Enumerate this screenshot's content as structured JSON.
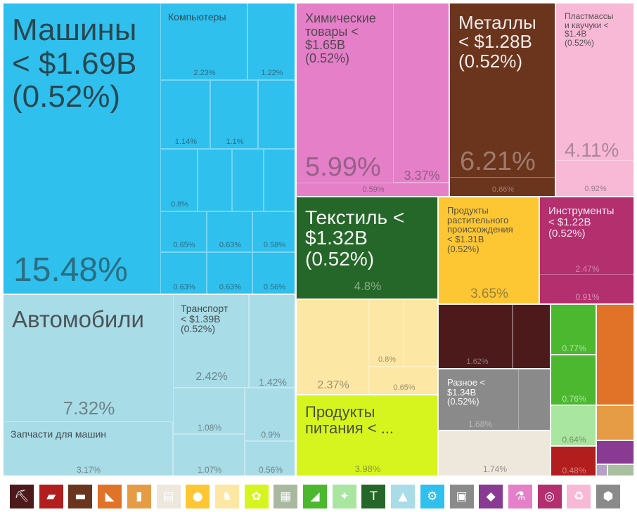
{
  "chart_data": {
    "type": "treemap",
    "blocks": [
      {
        "name": "Машины",
        "label": "Машины\n< $1.69B\n(0.52%)",
        "color": "#2fc0ee",
        "sub": [
          {
            "label": "Компьютеры",
            "value": "2.23%"
          },
          {
            "value": "1.22%"
          },
          {
            "value": "1.14%"
          },
          {
            "value": "1.1%"
          },
          {
            "value": "0.8%"
          },
          {
            "value": "0.65%"
          },
          {
            "value": "0.63%"
          },
          {
            "value": "0.58%"
          },
          {
            "value": "0.63%"
          },
          {
            "value": "0.63%"
          },
          {
            "value": "0.56%"
          }
        ],
        "value": "15.48%"
      },
      {
        "name": "Автомобили",
        "label": "Автомобили",
        "color": "#a8dce7",
        "value": "7.32%",
        "sub": [
          {
            "label": "Транспорт\n< $1.39B\n(0.52%)",
            "value": "2.42%"
          },
          {
            "value": "1.42%"
          },
          {
            "label": "Запчасти для машин",
            "value": "3.17%"
          },
          {
            "value": "1.08%"
          },
          {
            "value": "0.9%"
          },
          {
            "value": "1.07%"
          },
          {
            "value": "0.56%"
          }
        ]
      },
      {
        "name": "Химические товары",
        "label": "Химические\nтовары <\n$1.65B\n(0.52%)",
        "color": "#e47fc8",
        "value": "5.99%",
        "sub": [
          {
            "value": "3.37%"
          },
          {
            "value": "0.59%"
          }
        ]
      },
      {
        "name": "Металлы",
        "label": "Металлы\n< $1.28B\n(0.52%)",
        "color": "#6b341d",
        "value": "6.21%",
        "sub": [
          {
            "value": "0.66%"
          }
        ]
      },
      {
        "name": "Пластмассы и каучуки",
        "label": "Пластмассы\nи каучуки <\n$1.4B\n(0.52%)",
        "color": "#f7b9d6",
        "value": "4.11%",
        "sub": [
          {
            "value": "0.92%"
          }
        ]
      },
      {
        "name": "Текстиль",
        "label": "Текстиль <\n$1.32B\n(0.52%)",
        "color": "#256728",
        "value": "4.8%"
      },
      {
        "name": "Продукты растительного происхождения",
        "label": "Продукты\nрастительного\nпроисхождения\n< $1.31B\n(0.52%)",
        "color": "#fdc734",
        "value": "3.65%"
      },
      {
        "name": "Инструменты",
        "label": "Инструменты\n< $1.22B\n(0.52%)",
        "color": "#b32f6e",
        "value": "2.47%",
        "sub": [
          {
            "value": "0.91%"
          }
        ]
      },
      {
        "name": "Продукты животного происхождения",
        "color": "#fde7a4",
        "value": "2.37%",
        "sub": [
          {
            "value": "0.8%"
          },
          {
            "value": "0.65%"
          }
        ]
      },
      {
        "name": "Продукты питания",
        "label": "Продукты\nпитания < ...",
        "color": "#d6f51e",
        "value": "3.98%"
      },
      {
        "name": "Минеральные продукты",
        "color": "#4c1a1b",
        "value": "1.62%"
      },
      {
        "name": "Разное",
        "label": "Разное <\n$1.34B\n(0.52%)",
        "color": "#8a8a8a",
        "value": "1.68%"
      },
      {
        "name": "Бумажные товары",
        "color": "#ede7dc",
        "value": "1.74%"
      },
      {
        "name": "Обувь",
        "color": "#4bb82f",
        "values": [
          "0.77%",
          "0.76%"
        ]
      },
      {
        "name": "Стекло и камень",
        "color": "#a9e6a0",
        "value": "0.64%"
      },
      {
        "name": "Деревянные изделия",
        "color": "#e07328"
      },
      {
        "name": "Кожа",
        "color": "#e69c44"
      },
      {
        "name": "Драгоценные металлы",
        "color": "#893a92"
      },
      {
        "name": "Оружие",
        "color": "#b21e1e",
        "value": "0.48%"
      }
    ]
  },
  "legend": [
    {
      "icon": "pickaxe-icon",
      "glyph": "⛏",
      "color": "#4c1a1b"
    },
    {
      "icon": "metal-bar-icon",
      "glyph": "▰",
      "color": "#b21e1e"
    },
    {
      "icon": "anvil-icon",
      "glyph": "▬",
      "color": "#6b341d"
    },
    {
      "icon": "pottery-icon",
      "glyph": "◣",
      "color": "#e07328"
    },
    {
      "icon": "bottle-icon",
      "glyph": "▮",
      "color": "#e69c44"
    },
    {
      "icon": "scroll-icon",
      "glyph": "▤",
      "color": "#ede7dc"
    },
    {
      "icon": "fruit-icon",
      "glyph": "●",
      "color": "#fdc734"
    },
    {
      "icon": "animal-icon",
      "glyph": "♞",
      "color": "#fde7a4"
    },
    {
      "icon": "wheat-icon",
      "glyph": "✿",
      "color": "#d6f51e"
    },
    {
      "icon": "machine-box-icon",
      "glyph": "▦",
      "color": "#a9b9a0"
    },
    {
      "icon": "shoe-icon",
      "glyph": "◢",
      "color": "#4bb82f"
    },
    {
      "icon": "star-shape-icon",
      "glyph": "✦",
      "color": "#a9e6a0"
    },
    {
      "icon": "shirt-icon",
      "glyph": "T",
      "color": "#256728"
    },
    {
      "icon": "road-icon",
      "glyph": "▲",
      "color": "#a8dce7"
    },
    {
      "icon": "gears-icon",
      "glyph": "⚙",
      "color": "#2fc0ee"
    },
    {
      "icon": "picture-frame-icon",
      "glyph": "▣",
      "color": "#8a8a8a"
    },
    {
      "icon": "diamond-icon",
      "glyph": "◆",
      "color": "#893a92"
    },
    {
      "icon": "flask-icon",
      "glyph": "⚗",
      "color": "#e47fc8"
    },
    {
      "icon": "target-icon",
      "glyph": "◎",
      "color": "#b32f6e"
    },
    {
      "icon": "recycle-icon",
      "glyph": "♻",
      "color": "#f7b9d6"
    },
    {
      "icon": "package-icon",
      "glyph": "⬢",
      "color": "#8a8a8a"
    }
  ]
}
